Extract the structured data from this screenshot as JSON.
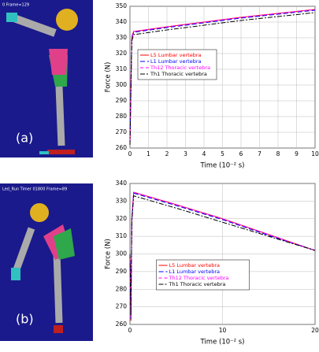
{
  "panels": [
    {
      "label": "(a)",
      "caption": "0 Frame=129"
    },
    {
      "label": "(b)",
      "caption": "Led_Run Timer 01800 Frame=89"
    }
  ],
  "chart_data": [
    {
      "type": "line",
      "xlabel": "Time (10⁻² s)",
      "ylabel": "Force (N)",
      "grid": true,
      "legend": "upper left",
      "x": [
        0,
        0.05,
        0.1,
        0.2,
        2,
        4,
        6,
        8,
        10
      ],
      "xlim": [
        0,
        10
      ],
      "xticks": [
        0,
        1,
        2,
        3,
        4,
        5,
        6,
        7,
        8,
        9,
        10
      ],
      "ylim": [
        260,
        350
      ],
      "yticks": [
        260,
        270,
        280,
        290,
        300,
        310,
        320,
        330,
        340,
        350
      ],
      "series": [
        {
          "name": "L5 Lumbar vertebra",
          "color": "#ff0000",
          "dash": "none",
          "values": [
            262,
            300,
            331,
            334,
            337,
            340,
            343,
            345.5,
            348
          ]
        },
        {
          "name": "L1 Lumbar vertebra",
          "color": "#0000ff",
          "dash": "6 3",
          "values": [
            263,
            298,
            330,
            333.5,
            336.5,
            339.5,
            342.5,
            345,
            347.5
          ]
        },
        {
          "name": "Th12 Thoracic vertebra",
          "color": "#ff00ff",
          "dash": "4 3",
          "values": [
            264,
            299,
            330.5,
            334,
            337,
            340,
            343,
            345.5,
            348
          ]
        },
        {
          "name": "Th1 Thoracic vertebra",
          "color": "#000000",
          "dash": "6 2 2 2",
          "values": [
            262,
            295,
            328,
            332,
            335,
            338,
            341,
            343.5,
            346
          ]
        }
      ]
    },
    {
      "type": "line",
      "xlabel": "Time (10⁻² s)",
      "ylabel": "Force (N)",
      "grid": true,
      "legend": "lower center",
      "x": [
        0,
        0.1,
        0.2,
        0.4,
        5,
        10,
        15,
        20
      ],
      "xlim": [
        0,
        20
      ],
      "xticks": [
        0,
        10,
        20
      ],
      "ylim": [
        260,
        340
      ],
      "yticks": [
        260,
        270,
        280,
        290,
        300,
        310,
        320,
        330,
        340
      ],
      "series": [
        {
          "name": "L5 Lumbar vertebra",
          "color": "#ff0000",
          "dash": "none",
          "values": [
            300,
            262,
            320,
            335,
            328,
            320,
            311,
            302
          ]
        },
        {
          "name": "L1 Lumbar vertebra",
          "color": "#0000ff",
          "dash": "6 3",
          "values": [
            300,
            263,
            319,
            334.5,
            327.5,
            319.5,
            310.5,
            302
          ]
        },
        {
          "name": "Th12 Thoracic vertebra",
          "color": "#ff00ff",
          "dash": "4 3",
          "values": [
            300,
            264,
            321,
            335,
            328,
            320,
            311,
            302
          ]
        },
        {
          "name": "Th1 Thoracic vertebra",
          "color": "#000000",
          "dash": "6 2 2 2",
          "values": [
            300,
            265,
            318,
            333,
            326,
            318,
            310,
            302
          ]
        }
      ]
    }
  ]
}
